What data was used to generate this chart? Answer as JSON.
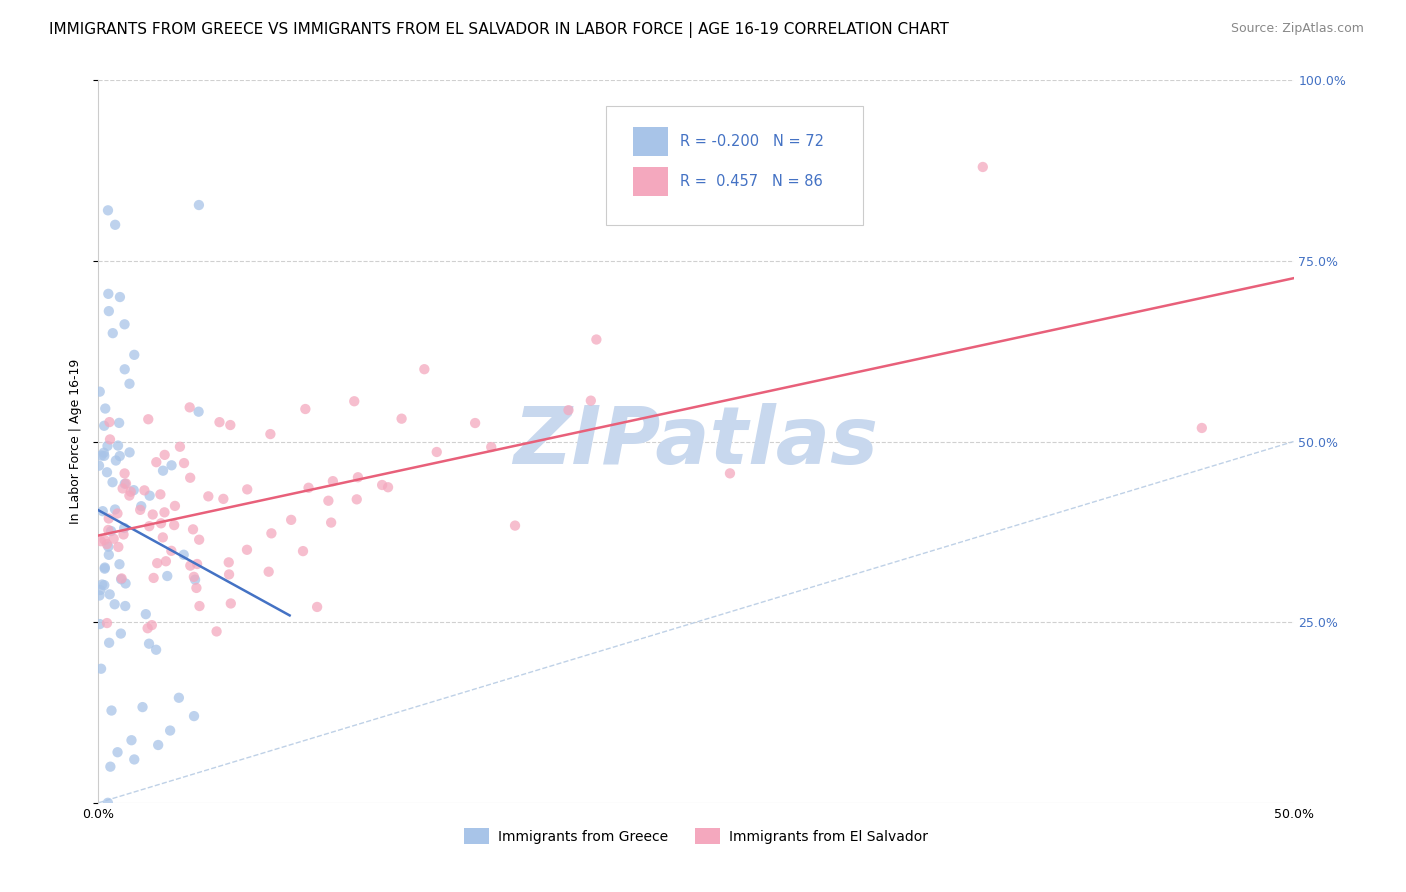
{
  "title": "IMMIGRANTS FROM GREECE VS IMMIGRANTS FROM EL SALVADOR IN LABOR FORCE | AGE 16-19 CORRELATION CHART",
  "source": "Source: ZipAtlas.com",
  "ylabel": "In Labor Force | Age 16-19",
  "greece_R": -0.2,
  "greece_N": 72,
  "salvador_R": 0.457,
  "salvador_N": 86,
  "greece_color": "#a8c4e8",
  "salvador_color": "#f4a8be",
  "greece_line_color": "#4472c4",
  "salvador_line_color": "#e8607a",
  "diagonal_color": "#b8cce4",
  "background_color": "#ffffff",
  "grid_color": "#d0d0d0",
  "watermark_color": "#c8d8ee",
  "legend_greece": "Immigrants from Greece",
  "legend_salvador": "Immigrants from El Salvador",
  "title_fontsize": 11,
  "axis_label_fontsize": 9,
  "tick_label_fontsize": 9,
  "source_fontsize": 9,
  "right_tick_color": "#4472c4",
  "legend_text_color": "#4472c4"
}
